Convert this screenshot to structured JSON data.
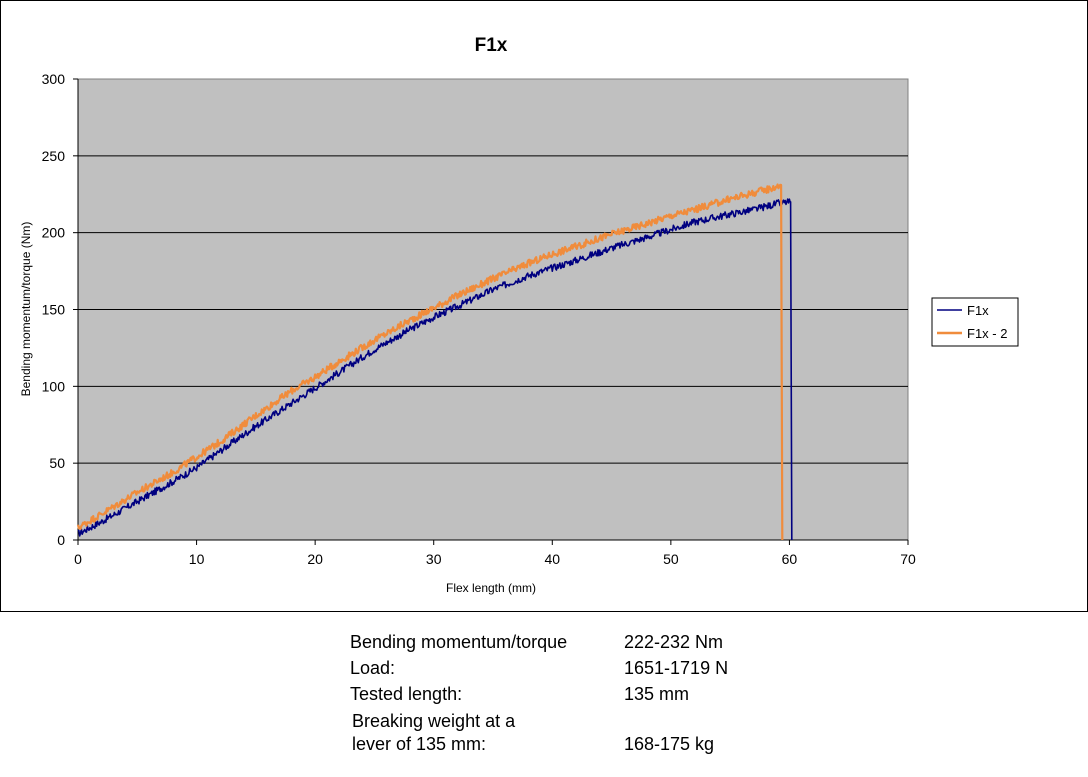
{
  "chart_data": {
    "type": "line",
    "title": "F1x",
    "xlabel": "Flex length (mm)",
    "ylabel": "Bending momentum/torque (Nm)",
    "xlim": [
      0,
      70
    ],
    "ylim": [
      0,
      300
    ],
    "x_ticks": [
      0,
      10,
      20,
      30,
      40,
      50,
      60,
      70
    ],
    "y_ticks": [
      0,
      50,
      100,
      150,
      200,
      250,
      300
    ],
    "grid": "horizontal",
    "legend_position": "right",
    "plot_background": "#c0c0c0",
    "series": [
      {
        "name": "F1x",
        "color": "#000080",
        "x": [
          0,
          2,
          5,
          8,
          10,
          12,
          15,
          18,
          20,
          22,
          25,
          28,
          30,
          32,
          35,
          38,
          40,
          42,
          45,
          48,
          50,
          52,
          55,
          57,
          58,
          59,
          60,
          60.1,
          60.2
        ],
        "y": [
          4,
          12,
          25,
          38,
          47,
          58,
          74,
          89,
          99,
          109,
          124,
          137,
          145,
          152,
          163,
          172,
          177,
          182,
          190,
          197,
          202,
          207,
          212,
          215,
          217,
          219,
          220,
          220,
          0
        ]
      },
      {
        "name": "F1x - 2",
        "color": "#f08c3c",
        "x": [
          0,
          2,
          5,
          8,
          10,
          12,
          15,
          18,
          20,
          22,
          25,
          28,
          30,
          32,
          35,
          38,
          40,
          42,
          45,
          48,
          50,
          52,
          55,
          57,
          58,
          59,
          59.3,
          59.4
        ],
        "y": [
          8,
          17,
          31,
          44,
          54,
          64,
          81,
          97,
          106,
          116,
          130,
          143,
          151,
          159,
          170,
          180,
          186,
          191,
          199,
          206,
          211,
          215,
          222,
          226,
          228,
          230,
          231,
          0
        ]
      }
    ]
  },
  "info": {
    "rows": [
      {
        "label": "Bending momentum/torque",
        "value": "222-232 Nm"
      },
      {
        "label": "Load:",
        "value": "1651-1719 N"
      },
      {
        "label": "Tested length:",
        "value": "135 mm"
      }
    ],
    "breaking_label_line1": "Breaking weight at a",
    "breaking_label_line2": "lever of 135 mm:",
    "breaking_value": "168-175 kg"
  }
}
